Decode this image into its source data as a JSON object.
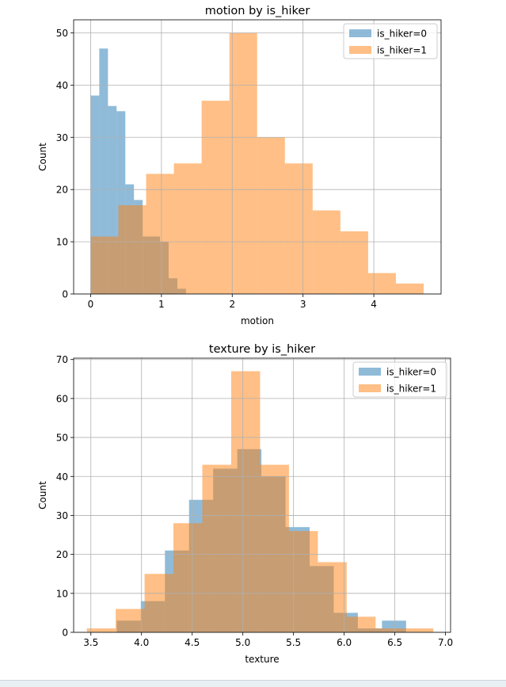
{
  "chart_data": [
    {
      "type": "histogram",
      "title": "motion by is_hiker",
      "xlabel": "motion",
      "ylabel": "Count",
      "xlim": [
        -0.24,
        4.95
      ],
      "ylim": [
        0,
        52.5
      ],
      "xticks": [
        0,
        1,
        2,
        3,
        4
      ],
      "yticks": [
        0,
        10,
        20,
        30,
        40,
        50
      ],
      "grid": true,
      "legend_position": "top-right",
      "series": [
        {
          "name": "is_hiker=0",
          "color": "#1f77b4",
          "bin_edges": [
            0,
            0.122,
            0.245,
            0.367,
            0.49,
            0.612,
            0.735,
            0.857,
            0.98,
            1.102,
            1.225,
            1.347
          ],
          "values": [
            38,
            47,
            36,
            35,
            21,
            18,
            11,
            11,
            10,
            3,
            1
          ]
        },
        {
          "name": "is_hiker=1",
          "color": "#ff7f0e",
          "bin_edges": [
            0,
            0.392,
            0.784,
            1.176,
            1.568,
            1.96,
            2.352,
            2.744,
            3.136,
            3.528,
            3.92,
            4.312,
            4.704
          ],
          "values": [
            11,
            17,
            23,
            25,
            37,
            50,
            30,
            25,
            16,
            12,
            4,
            2
          ]
        }
      ]
    },
    {
      "type": "histogram",
      "title": "texture by is_hiker",
      "xlabel": "texture",
      "ylabel": "Count",
      "xlim": [
        3.33,
        7.05
      ],
      "ylim": [
        0,
        70.35
      ],
      "xticks": [
        "3.5",
        "4.0",
        "4.5",
        "5.0",
        "5.5",
        "6.0",
        "6.5",
        "7.0"
      ],
      "yticks": [
        0,
        10,
        20,
        30,
        40,
        50,
        60,
        70
      ],
      "grid": true,
      "legend_position": "top-right",
      "series": [
        {
          "name": "is_hiker=0",
          "color": "#1f77b4",
          "bin_edges": [
            3.755,
            3.993,
            4.231,
            4.469,
            4.707,
            4.945,
            5.183,
            5.421,
            5.659,
            5.897,
            6.135,
            6.373,
            6.611
          ],
          "values": [
            3,
            8,
            21,
            34,
            42,
            47,
            40,
            27,
            17,
            5,
            1,
            3
          ]
        },
        {
          "name": "is_hiker=1",
          "color": "#ff7f0e",
          "bin_edges": [
            3.46,
            3.745,
            4.03,
            4.315,
            4.6,
            4.885,
            5.17,
            5.455,
            5.74,
            6.025,
            6.31,
            6.595,
            6.88
          ],
          "values": [
            1,
            6,
            15,
            28,
            43,
            67,
            43,
            26,
            18,
            4,
            1,
            1
          ]
        }
      ]
    }
  ]
}
